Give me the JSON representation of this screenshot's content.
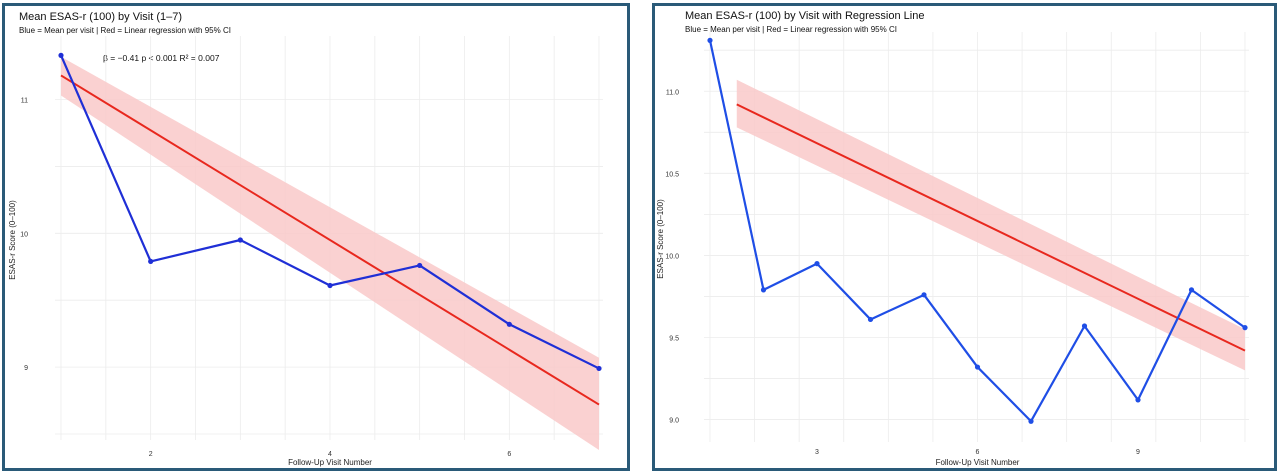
{
  "chart_data": [
    {
      "type": "line",
      "title": "Mean ESAS-r (100) by Visit (1–7)",
      "subtitle": "Blue = Mean per visit | Red = Linear regression with 95% CI",
      "annotation": "β = −0.41   p < 0.001   R² = 0.007",
      "xlabel": "Follow-Up Visit Number",
      "ylabel": "ESAS-r Score (0–100)",
      "xlim": [
        1,
        7
      ],
      "ylim": [
        8.5,
        11.4
      ],
      "xticks": [
        2,
        4,
        6
      ],
      "yticks": [
        9,
        10,
        11
      ],
      "grid": true,
      "series": [
        {
          "kind": "mean",
          "color": "#1f2fd6",
          "x": [
            1,
            2,
            3,
            4,
            5,
            6,
            7
          ],
          "y": [
            11.33,
            9.79,
            9.95,
            9.61,
            9.76,
            9.32,
            8.99
          ]
        },
        {
          "kind": "regression",
          "color": "#e8281e",
          "band_color": "#f9c9c9",
          "x": [
            1,
            7
          ],
          "y": [
            11.18,
            8.72
          ],
          "ci_low": [
            11.03,
            8.38
          ],
          "ci_high": [
            11.32,
            9.07
          ]
        }
      ]
    },
    {
      "type": "line",
      "title": "Mean ESAS-r (100) by Visit with Regression Line",
      "subtitle": "Blue = Mean per visit | Red = Linear regression with 95% CI",
      "xlabel": "Follow-Up Visit Number",
      "ylabel": "ESAS-r Score (0–100)",
      "xlim": [
        1,
        11
      ],
      "ylim": [
        8.9,
        11.3
      ],
      "xticks": [
        3,
        6,
        9
      ],
      "yticks": [
        9.0,
        9.5,
        10.0,
        10.5,
        11.0
      ],
      "ytick_labels": [
        "9.0",
        "9.5",
        "10.0",
        "10.5",
        "11.0"
      ],
      "grid": true,
      "series": [
        {
          "kind": "mean",
          "color": "#1f4ee6",
          "x": [
            1,
            2,
            3,
            4,
            5,
            6,
            7,
            8,
            9,
            10,
            11
          ],
          "y": [
            11.31,
            9.79,
            9.95,
            9.61,
            9.76,
            9.32,
            8.99,
            9.57,
            9.12,
            9.79,
            9.56
          ]
        },
        {
          "kind": "regression",
          "color": "#e8281e",
          "band_color": "#f9c9c9",
          "x": [
            1.5,
            11
          ],
          "y": [
            10.92,
            9.42
          ],
          "ci_low": [
            10.78,
            9.3
          ],
          "ci_high": [
            11.07,
            9.55
          ]
        }
      ]
    }
  ]
}
